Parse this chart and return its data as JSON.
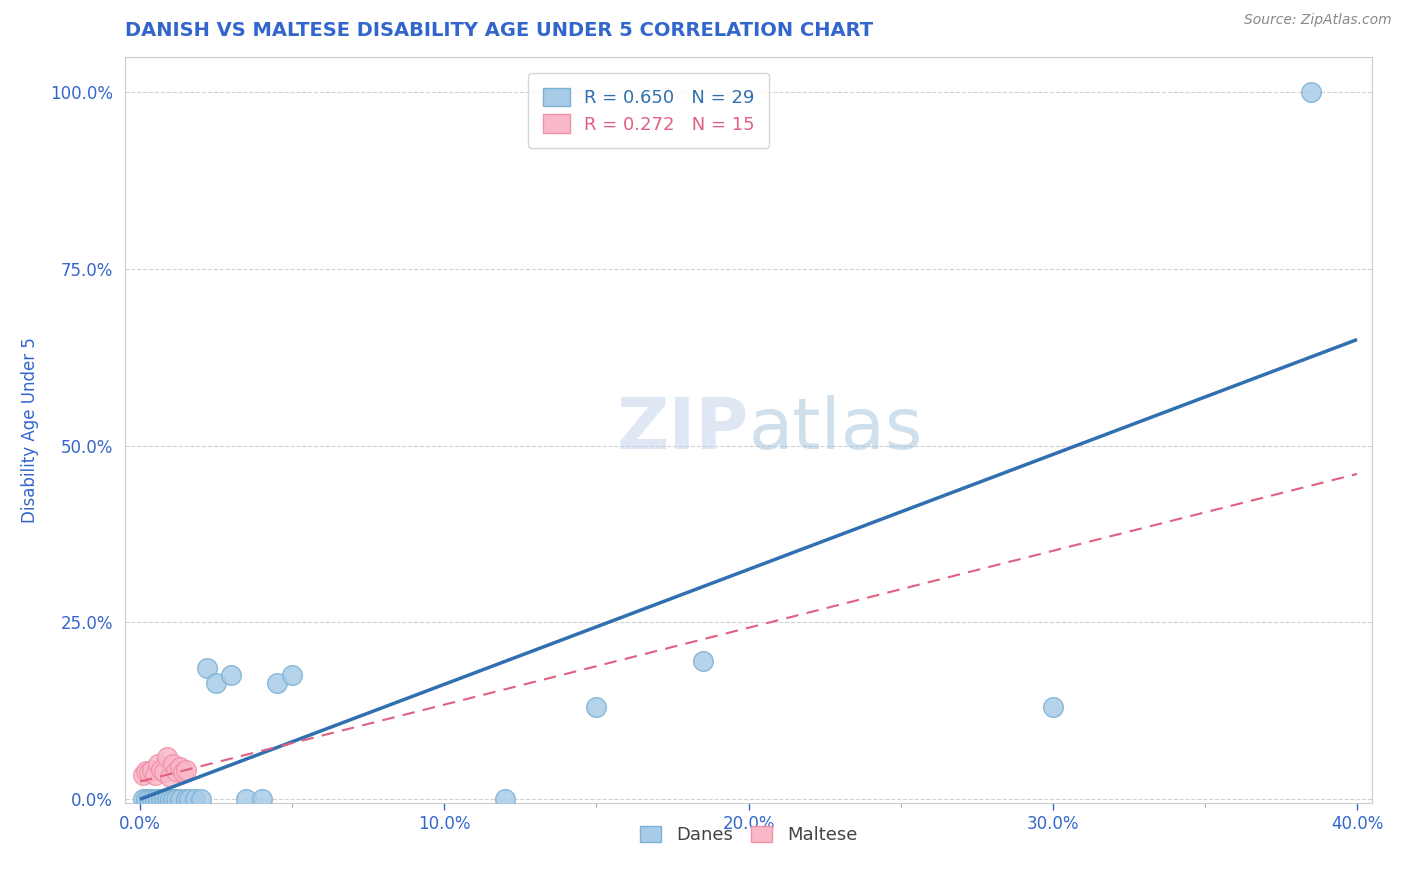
{
  "title": "DANISH VS MALTESE DISABILITY AGE UNDER 5 CORRELATION CHART",
  "source": "Source: ZipAtlas.com",
  "xlabel": "",
  "ylabel": "Disability Age Under 5",
  "xlim": [
    -0.005,
    0.405
  ],
  "ylim": [
    -0.005,
    1.05
  ],
  "xticks": [
    0.0,
    0.1,
    0.2,
    0.3,
    0.4
  ],
  "xtick_labels": [
    "0.0%",
    "10.0%",
    "20.0%",
    "30.0%",
    "40.0%"
  ],
  "yticks": [
    0.0,
    0.25,
    0.5,
    0.75,
    1.0
  ],
  "ytick_labels": [
    "0.0%",
    "25.0%",
    "50.0%",
    "75.0%",
    "100.0%"
  ],
  "danes_R": 0.65,
  "danes_N": 29,
  "maltese_R": 0.272,
  "maltese_N": 15,
  "danes_color": "#a8cce8",
  "maltese_color": "#f9b8c8",
  "danes_edge_color": "#7ab0d4",
  "maltese_edge_color": "#f090a8",
  "trendline_danes_color": "#3070b0",
  "trendline_maltese_color": "#e06080",
  "background_color": "#ffffff",
  "danes_x": [
    0.001,
    0.002,
    0.003,
    0.004,
    0.005,
    0.006,
    0.007,
    0.008,
    0.009,
    0.01,
    0.011,
    0.012,
    0.013,
    0.015,
    0.016,
    0.018,
    0.02,
    0.022,
    0.025,
    0.03,
    0.035,
    0.04,
    0.045,
    0.05,
    0.12,
    0.15,
    0.185,
    0.3,
    0.385
  ],
  "danes_y": [
    0.0,
    0.0,
    0.0,
    0.0,
    0.0,
    0.0,
    0.0,
    0.0,
    0.0,
    0.0,
    0.0,
    0.0,
    0.0,
    0.0,
    0.0,
    0.0,
    0.0,
    0.185,
    0.165,
    0.175,
    0.0,
    0.0,
    0.165,
    0.175,
    0.0,
    0.13,
    0.195,
    0.13,
    1.0
  ],
  "maltese_x": [
    0.001,
    0.002,
    0.003,
    0.004,
    0.005,
    0.006,
    0.007,
    0.008,
    0.009,
    0.01,
    0.011,
    0.012,
    0.013,
    0.014,
    0.015
  ],
  "maltese_y": [
    0.035,
    0.04,
    0.038,
    0.042,
    0.035,
    0.05,
    0.042,
    0.038,
    0.06,
    0.032,
    0.05,
    0.04,
    0.045,
    0.038,
    0.042
  ],
  "danes_trendline_x0": 0.0,
  "danes_trendline_y0": 0.0,
  "danes_trendline_x1": 0.4,
  "danes_trendline_y1": 0.65,
  "maltese_trendline_x0": 0.0,
  "maltese_trendline_y0": 0.025,
  "maltese_trendline_x1": 0.4,
  "maltese_trendline_y1": 0.46,
  "grid_color": "#cccccc",
  "title_color": "#3366cc",
  "axis_label_color": "#3366cc",
  "tick_color": "#3366cc",
  "legend_label_danes": "Danes",
  "legend_label_maltese": "Maltese"
}
